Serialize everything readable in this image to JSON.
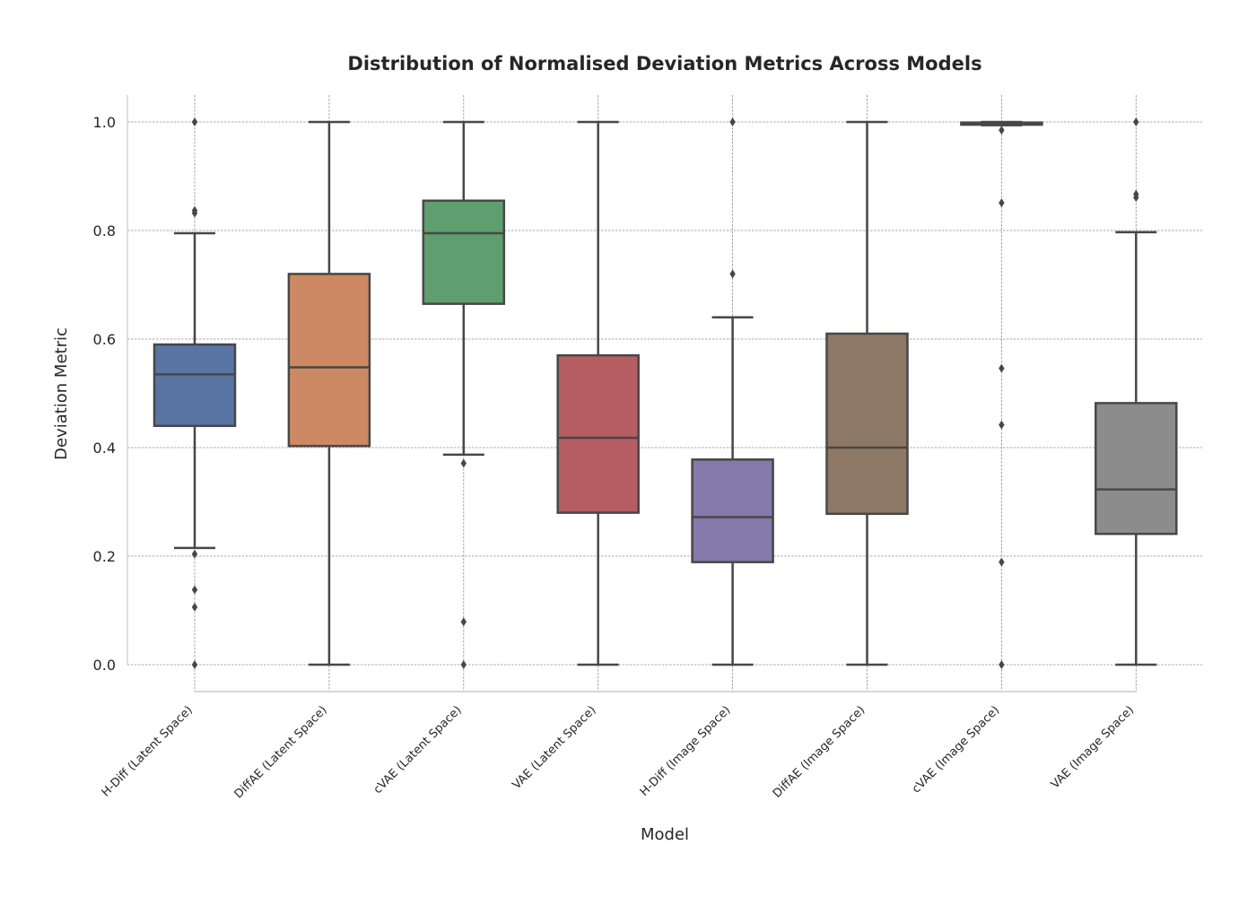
{
  "chart_data": {
    "type": "boxplot",
    "title": "Distribution of Normalised Deviation Metrics Across Models",
    "xlabel": "Model",
    "ylabel": "Deviation Metric",
    "ylim": [
      -0.05,
      1.05
    ],
    "yticks": [
      0.0,
      0.2,
      0.4,
      0.6,
      0.8,
      1.0
    ],
    "ytick_labels": [
      "0.0",
      "0.2",
      "0.4",
      "0.6",
      "0.8",
      "1.0"
    ],
    "grid": true,
    "colors": {
      "line": "#474747",
      "grid": "#8c8c8c",
      "spine": "#cccccc",
      "text": "#262626"
    },
    "categories": [
      "H-Diff (Latent Space)",
      "DiffAE (Latent Space)",
      "cVAE (Latent Space)",
      "VAE (Latent Space)",
      "H-Diff (Image Space)",
      "DiffAE (Image Space)",
      "cVAE (Image Space)",
      "VAE (Image Space)"
    ],
    "series": [
      {
        "name": "H-Diff (Latent Space)",
        "color": "#5875a4",
        "whisker_low": 0.215,
        "q1": 0.44,
        "median": 0.535,
        "q3": 0.59,
        "whisker_high": 0.795,
        "outliers": [
          1.0,
          0.837,
          0.832,
          0.204,
          0.138,
          0.106,
          0.0
        ]
      },
      {
        "name": "DiffAE (Latent Space)",
        "color": "#cc8963",
        "whisker_low": 0.0,
        "q1": 0.403,
        "median": 0.548,
        "q3": 0.72,
        "whisker_high": 1.0,
        "outliers": []
      },
      {
        "name": "cVAE (Latent Space)",
        "color": "#5f9e6e",
        "whisker_low": 0.387,
        "q1": 0.665,
        "median": 0.795,
        "q3": 0.855,
        "whisker_high": 1.0,
        "outliers": [
          0.371,
          0.079,
          0.0
        ]
      },
      {
        "name": "VAE (Latent Space)",
        "color": "#b55d60",
        "whisker_low": 0.0,
        "q1": 0.28,
        "median": 0.418,
        "q3": 0.57,
        "whisker_high": 1.0,
        "outliers": []
      },
      {
        "name": "H-Diff (Image Space)",
        "color": "#857aab",
        "whisker_low": 0.0,
        "q1": 0.189,
        "median": 0.272,
        "q3": 0.378,
        "whisker_high": 0.64,
        "outliers": [
          1.0,
          0.72
        ]
      },
      {
        "name": "DiffAE (Image Space)",
        "color": "#8d7866",
        "whisker_low": 0.0,
        "q1": 0.278,
        "median": 0.4,
        "q3": 0.61,
        "whisker_high": 1.0,
        "outliers": []
      },
      {
        "name": "cVAE (Image Space)",
        "color": "#8c8c8c",
        "whisker_low": 0.994,
        "q1": 0.995,
        "median": 0.997,
        "q3": 0.999,
        "whisker_high": 1.0,
        "outliers": [
          0.985,
          0.851,
          0.546,
          0.442,
          0.189,
          0.0
        ]
      },
      {
        "name": "VAE (Image Space)",
        "color": "#8c8c8c",
        "whisker_low": 0.0,
        "q1": 0.241,
        "median": 0.323,
        "q3": 0.482,
        "whisker_high": 0.797,
        "outliers": [
          1.0,
          0.867,
          0.861
        ]
      }
    ]
  }
}
